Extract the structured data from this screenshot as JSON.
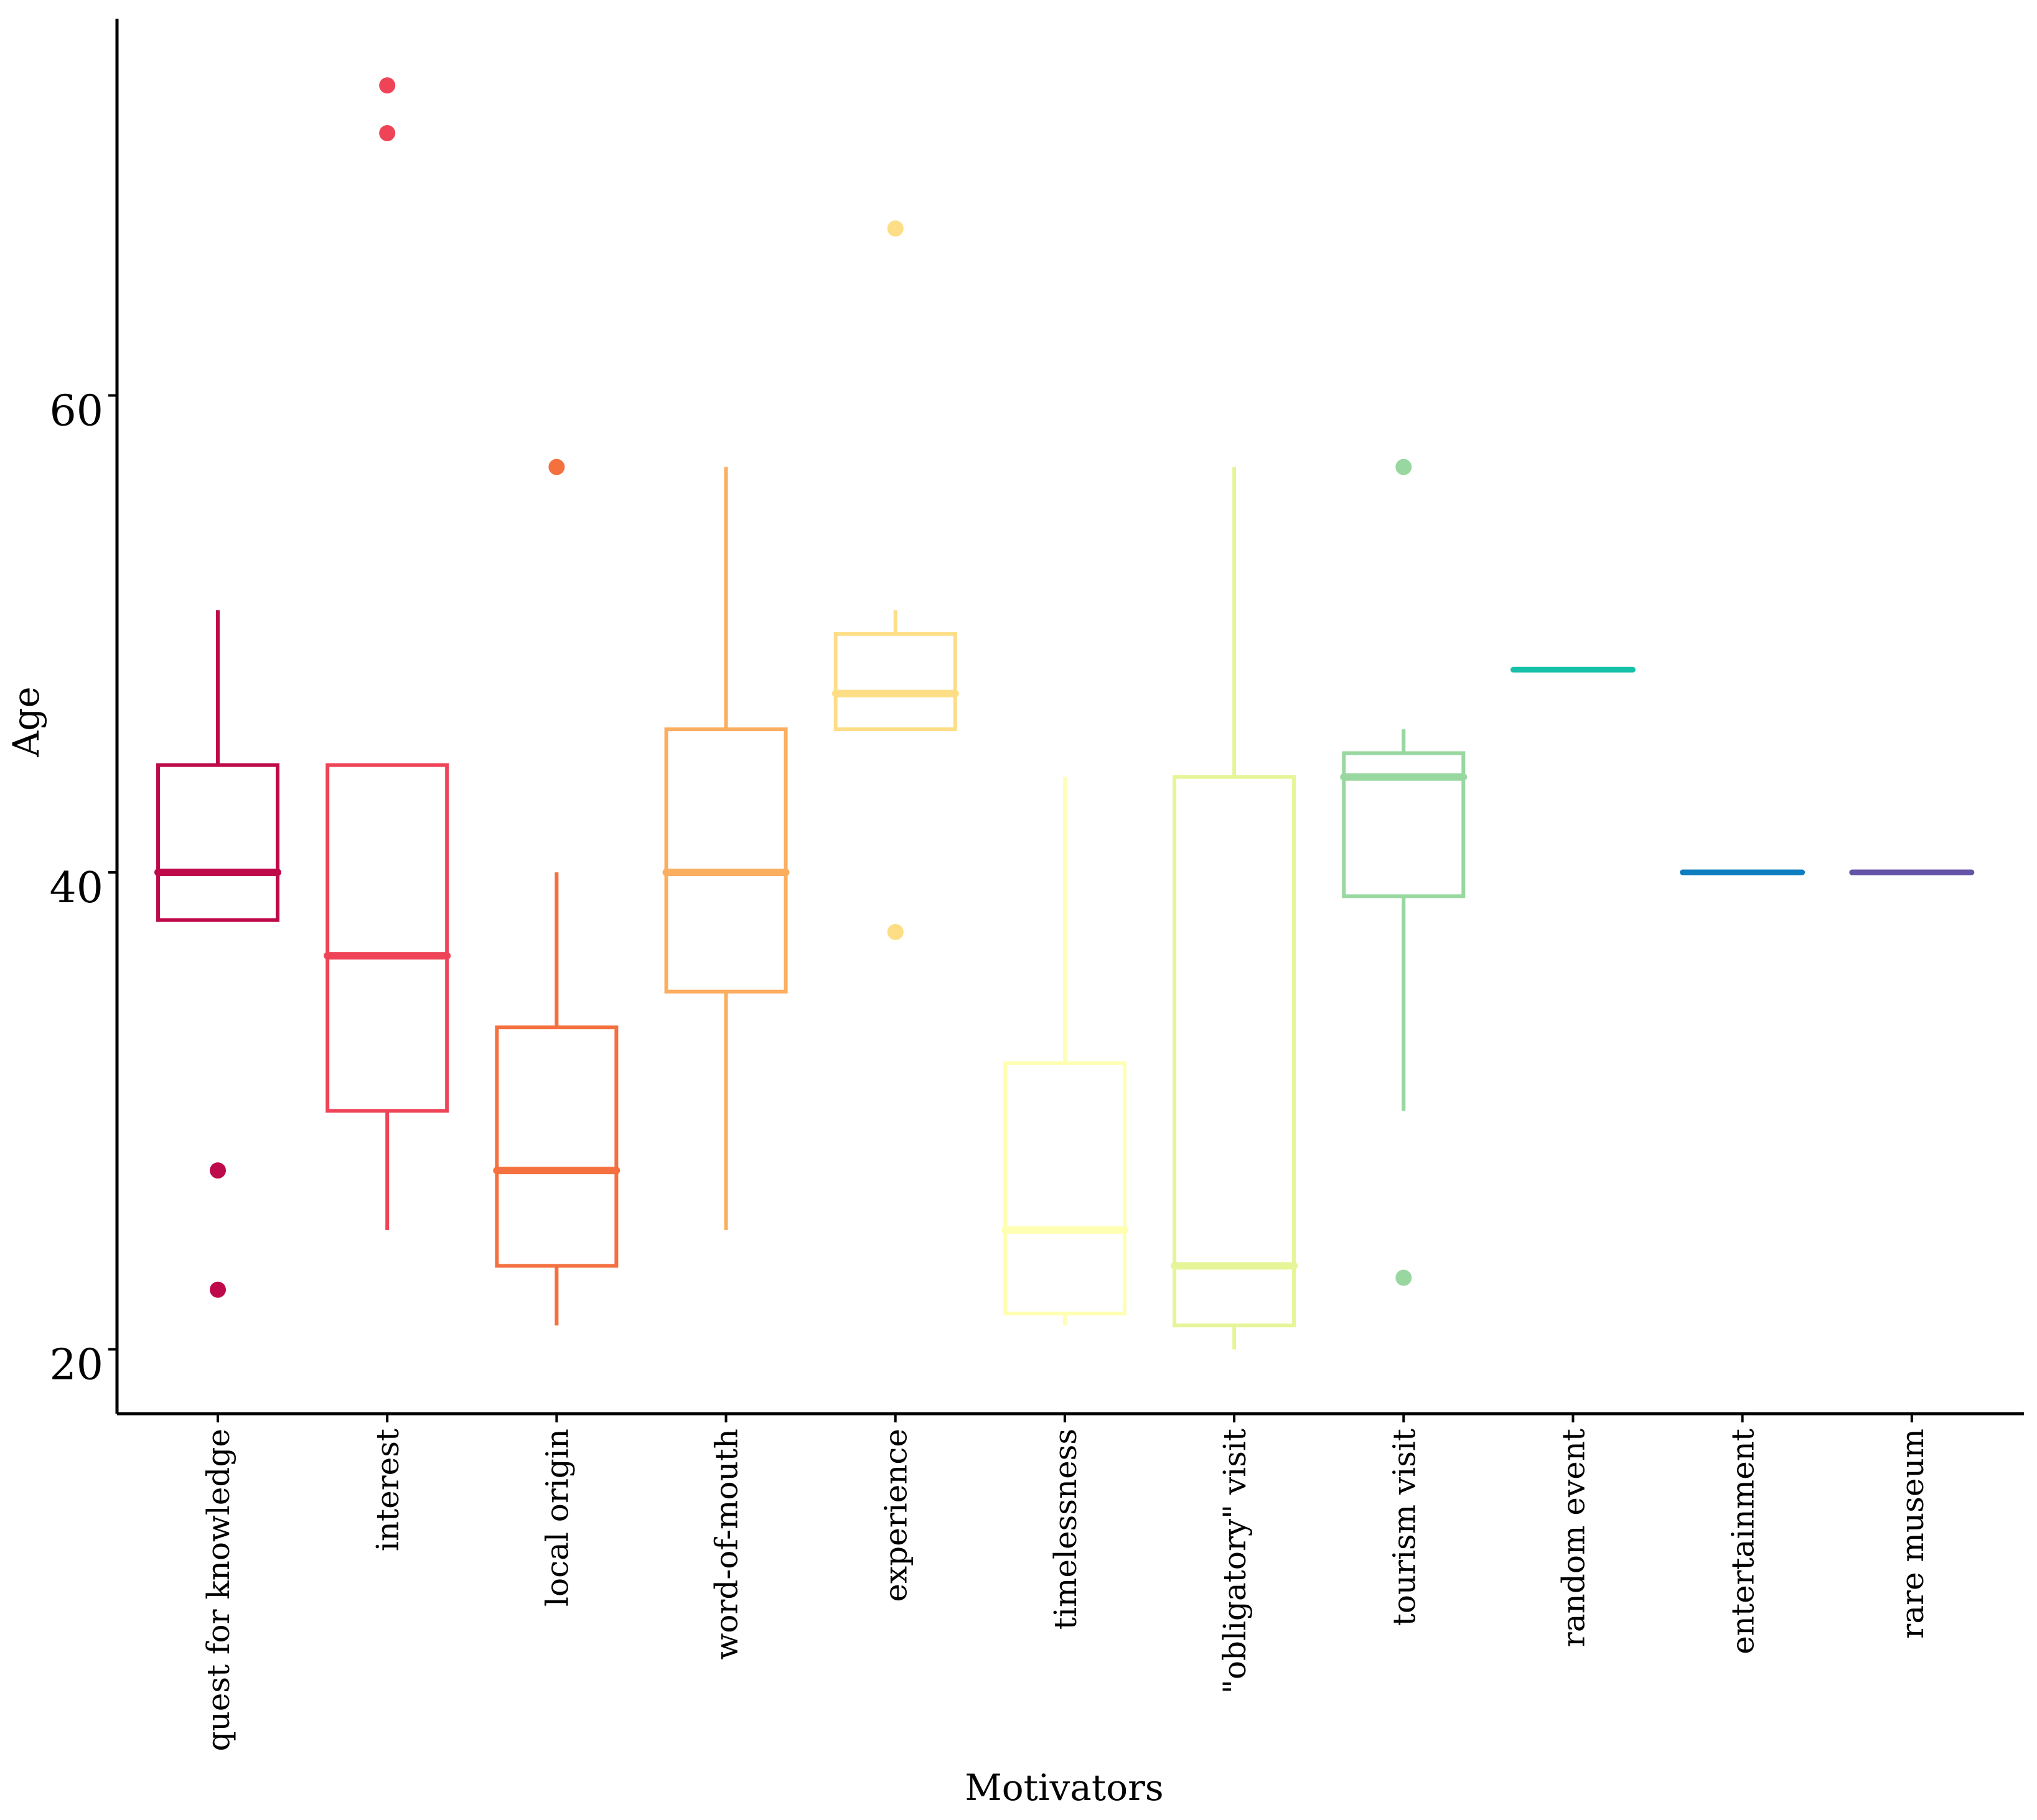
{
  "chart_data": {
    "type": "box",
    "title": "",
    "xlabel": "Motivators",
    "ylabel": "Age",
    "ylim": [
      17.3,
      75.8
    ],
    "yticks": [
      20,
      40,
      60
    ],
    "grid": false,
    "legend": "none",
    "series": [
      {
        "name": "quest for knowledge",
        "color": "#BE0A4A",
        "whisker_low": 38,
        "q1": 38,
        "median": 40,
        "q3": 44.5,
        "whisker_high": 51,
        "outliers": [
          27.5,
          22.5
        ]
      },
      {
        "name": "interest",
        "color": "#EF4458",
        "whisker_low": 25,
        "q1": 30,
        "median": 36.5,
        "q3": 44.5,
        "whisker_high": 44.5,
        "outliers": [
          73,
          71
        ]
      },
      {
        "name": "local origin",
        "color": "#F5703F",
        "whisker_low": 21,
        "q1": 23.5,
        "median": 27.5,
        "q3": 33.5,
        "whisker_high": 40,
        "outliers": [
          57
        ]
      },
      {
        "name": "word-of-mouth",
        "color": "#FBAE60",
        "whisker_low": 25,
        "q1": 35,
        "median": 40,
        "q3": 46,
        "whisker_high": 57,
        "outliers": []
      },
      {
        "name": "experience",
        "color": "#FDDE87",
        "whisker_low": 46,
        "q1": 46,
        "median": 47.5,
        "q3": 50,
        "whisker_high": 51,
        "outliers": [
          67,
          37.5
        ]
      },
      {
        "name": "timelessness",
        "color": "#FFFFB2",
        "whisker_low": 21,
        "q1": 21.5,
        "median": 25,
        "q3": 32,
        "whisker_high": 44,
        "outliers": []
      },
      {
        "name": "\"obligatory\" visit",
        "color": "#E6F598",
        "whisker_low": 20,
        "q1": 21,
        "median": 23.5,
        "q3": 44,
        "whisker_high": 57,
        "outliers": []
      },
      {
        "name": "tourism visit",
        "color": "#98D8A0",
        "whisker_low": 30,
        "q1": 39,
        "median": 44,
        "q3": 45,
        "whisker_high": 46,
        "outliers": [
          57,
          23
        ]
      },
      {
        "name": "random event",
        "color": "#16C1A7",
        "whisker_low": 48.5,
        "q1": 48.5,
        "median": 48.5,
        "q3": 48.5,
        "whisker_high": 48.5,
        "outliers": []
      },
      {
        "name": "entertainment",
        "color": "#0E7DC0",
        "whisker_low": 40,
        "q1": 40,
        "median": 40,
        "q3": 40,
        "whisker_high": 40,
        "outliers": []
      },
      {
        "name": "rare museum",
        "color": "#6553A8",
        "whisker_low": 40,
        "q1": 40,
        "median": 40,
        "q3": 40,
        "whisker_high": 40,
        "outliers": []
      }
    ]
  }
}
